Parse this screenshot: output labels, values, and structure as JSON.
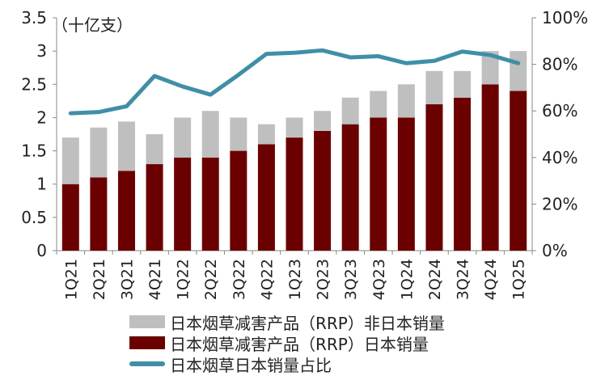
{
  "chart_data": {
    "type": "bar",
    "unit_label": "（十亿支）",
    "categories": [
      "1Q21",
      "2Q21",
      "3Q21",
      "4Q21",
      "1Q22",
      "2Q22",
      "3Q22",
      "4Q22",
      "1Q23",
      "2Q23",
      "3Q23",
      "4Q23",
      "1Q24",
      "2Q24",
      "3Q24",
      "4Q24",
      "1Q25"
    ],
    "series": [
      {
        "name": "日本烟草减害产品（RRP）日本销量",
        "kind": "bar-stacked",
        "axis": "left",
        "color": "#6b0000",
        "values": [
          1.0,
          1.1,
          1.2,
          1.3,
          1.4,
          1.4,
          1.5,
          1.6,
          1.7,
          1.8,
          1.9,
          2.0,
          2.0,
          2.2,
          2.3,
          2.5,
          2.4
        ]
      },
      {
        "name": "日本烟草减害产品（RRP）非日本销量",
        "kind": "bar-stacked",
        "axis": "left",
        "color": "#bfbfbf",
        "values": [
          0.7,
          0.75,
          0.74,
          0.45,
          0.6,
          0.7,
          0.5,
          0.3,
          0.3,
          0.3,
          0.4,
          0.4,
          0.5,
          0.5,
          0.4,
          0.5,
          0.6
        ]
      },
      {
        "name": "日本烟草日本销量占比",
        "kind": "line",
        "axis": "right",
        "color": "#3f8fa6",
        "values": [
          59,
          59.5,
          62,
          75,
          70.5,
          67,
          75.5,
          84.5,
          85,
          86,
          83,
          83.5,
          80.5,
          81.5,
          85.5,
          84,
          80.5
        ]
      }
    ],
    "y_left": {
      "min": 0,
      "max": 3.5,
      "ticks": [
        "0",
        "0.5",
        "1",
        "1.5",
        "2",
        "2.5",
        "3",
        "3.5"
      ]
    },
    "y_right": {
      "min": 0,
      "max": 100,
      "ticks": [
        "0%",
        "20%",
        "40%",
        "60%",
        "80%",
        "100%"
      ]
    },
    "legend": {
      "position": "bottom",
      "order": [
        "日本烟草减害产品（RRP）非日本销量",
        "日本烟草减害产品（RRP）日本销量",
        "日本烟草日本销量占比"
      ]
    },
    "grid": false
  }
}
